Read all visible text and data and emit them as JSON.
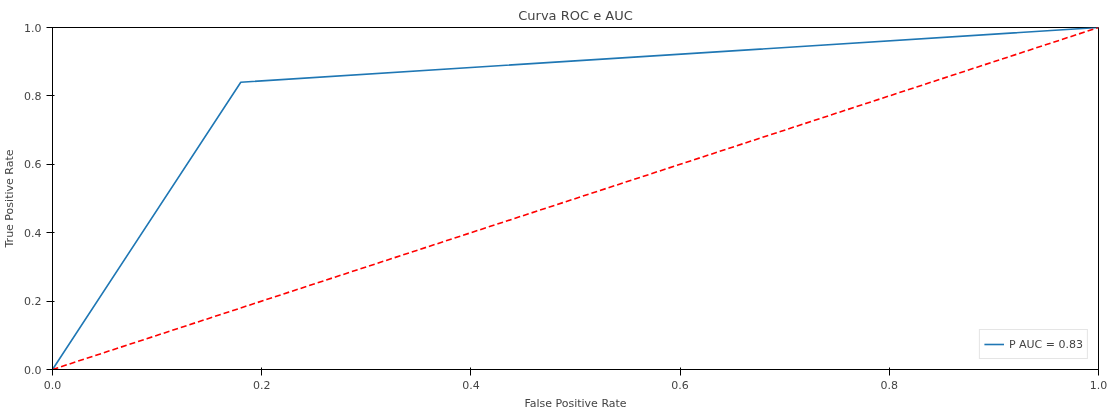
{
  "chart_data": {
    "type": "line",
    "title": "Curva ROC e AUC",
    "xlabel": "False Positive Rate",
    "ylabel": "True Positive Rate",
    "xlim": [
      0,
      1
    ],
    "ylim": [
      0,
      1
    ],
    "xticks": [
      {
        "value": 0,
        "label": "0.0"
      },
      {
        "value": 0.2,
        "label": "0.2"
      },
      {
        "value": 0.4,
        "label": "0.4"
      },
      {
        "value": 0.6,
        "label": "0.6"
      },
      {
        "value": 0.8,
        "label": "0.8"
      },
      {
        "value": 1,
        "label": "1.0"
      }
    ],
    "yticks": [
      {
        "value": 0,
        "label": "0.0"
      },
      {
        "value": 0.2,
        "label": "0.2"
      },
      {
        "value": 0.4,
        "label": "0.4"
      },
      {
        "value": 0.6,
        "label": "0.6"
      },
      {
        "value": 0.8,
        "label": "0.8"
      },
      {
        "value": 1,
        "label": "1.0"
      }
    ],
    "grid": false,
    "legend": "bottom right",
    "series": [
      {
        "name": "P AUC = 0.83",
        "color": "#1f77b4",
        "x": [
          0,
          0.18,
          1
        ],
        "values": [
          0,
          0.84,
          1
        ],
        "line_style": "solid"
      },
      {
        "color": "#ff0000",
        "x": [
          0,
          1
        ],
        "values": [
          0,
          1
        ],
        "line_style": "dashed"
      }
    ]
  }
}
